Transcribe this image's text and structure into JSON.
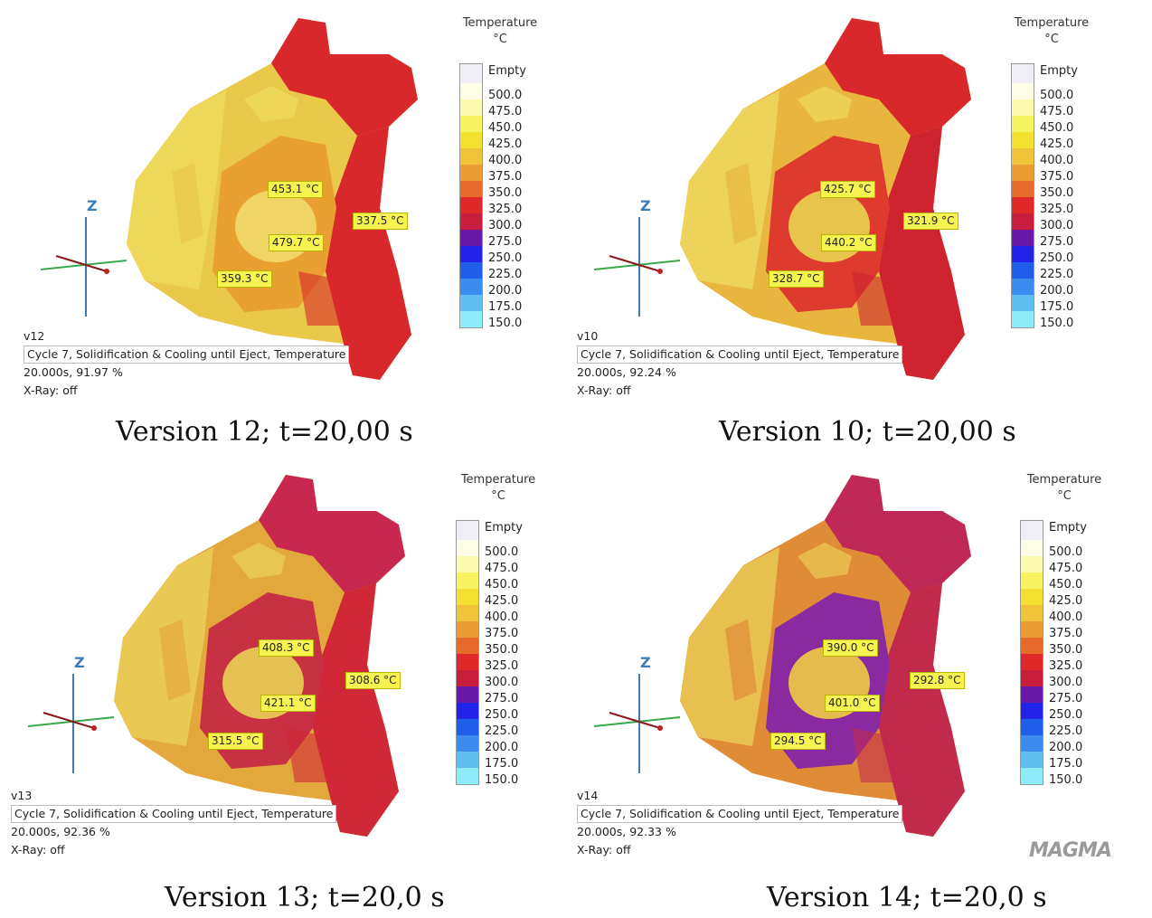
{
  "legend": {
    "title_line1": "Temperature",
    "title_line2": "°C",
    "empty_label": "Empty",
    "ticks": [
      "500.0",
      "475.0",
      "450.0",
      "425.0",
      "400.0",
      "375.0",
      "350.0",
      "325.0",
      "300.0",
      "275.0",
      "250.0",
      "225.0",
      "200.0",
      "175.0",
      "150.0"
    ],
    "colors": [
      "#efeef7",
      "#fdfde6",
      "#fbfbab",
      "#f7f260",
      "#f4e02e",
      "#f1c33a",
      "#eb9d34",
      "#e86a2a",
      "#e02828",
      "#c81e3e",
      "#6a18a8",
      "#2222e8",
      "#1f5ee8",
      "#3a8cee",
      "#5fbef2",
      "#8cecf8"
    ]
  },
  "panels": [
    {
      "version": "v12",
      "info_line1": "Cycle 7, Solidification & Cooling until Eject, Temperature",
      "info_line2": "20.000s, 91.97 %",
      "info_line3": "X-Ray: off",
      "caption": "Version 12; t=20,00 s",
      "probes": [
        "453.1 °C",
        "479.7 °C",
        "359.3 °C",
        "337.5 °C"
      ],
      "axis_label": "Z",
      "colors": {
        "body": "#e9c84a",
        "left": "#eed85a",
        "top": "#d8282c",
        "right": "#d8282c",
        "center": "#e8a030",
        "core": "#f1d466"
      }
    },
    {
      "version": "v10",
      "info_line1": "Cycle 7, Solidification & Cooling until Eject, Temperature",
      "info_line2": "20.000s, 92.24 %",
      "info_line3": "X-Ray: off",
      "caption": "Version 10; t=20,00 s",
      "probes": [
        "425.7 °C",
        "440.2 °C",
        "328.7 °C",
        "321.9 °C"
      ],
      "axis_label": "Z",
      "colors": {
        "body": "#e8b63e",
        "left": "#edd35a",
        "top": "#d8282c",
        "right": "#cf2430",
        "center": "#de3a2e",
        "core": "#e9c44c"
      }
    },
    {
      "version": "v13",
      "info_line1": "Cycle 7, Solidification & Cooling until Eject, Temperature",
      "info_line2": "20.000s, 92.36 %",
      "info_line3": "X-Ray: off",
      "caption": "Version 13; t=20,0 s",
      "probes": [
        "408.3 °C",
        "421.1 °C",
        "315.5 °C",
        "308.6 °C"
      ],
      "axis_label": "Z",
      "colors": {
        "body": "#e2a83c",
        "left": "#e9c954",
        "top": "#c8284e",
        "right": "#d02836",
        "center": "#c83044",
        "core": "#e6c052"
      }
    },
    {
      "version": "v14",
      "info_line1": "Cycle 7, Solidification & Cooling until Eject, Temperature",
      "info_line2": "20.000s, 92.33 %",
      "info_line3": "X-Ray: off",
      "caption": "Version 14; t=20,0 s",
      "probes": [
        "390.0 °C",
        "401.0 °C",
        "294.5 °C",
        "292.8 °C"
      ],
      "axis_label": "Z",
      "colors": {
        "body": "#e08c36",
        "left": "#e8c050",
        "top": "#c02858",
        "right": "#c22a4c",
        "center": "#8a2aa0",
        "core": "#e4bb4c"
      }
    }
  ],
  "logo_text": "MAGMA"
}
